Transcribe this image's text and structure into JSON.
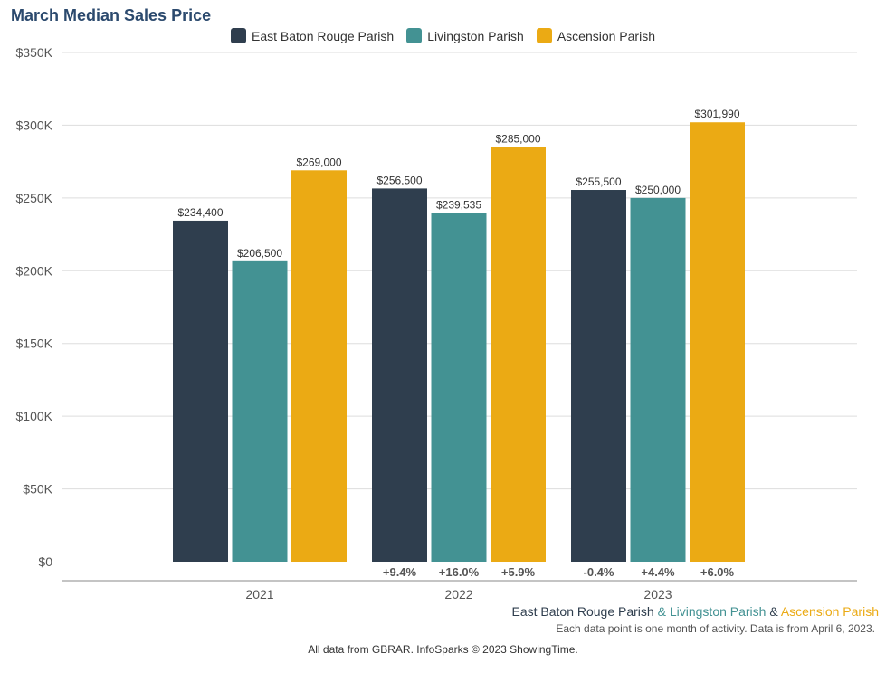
{
  "colors": {
    "east": "#2f3e4e",
    "livingston": "#439293",
    "ascension": "#ebaa14"
  },
  "chart_data": {
    "type": "bar",
    "title": "March Median Sales Price",
    "categories": [
      "2021",
      "2022",
      "2023"
    ],
    "series": [
      {
        "name": "East Baton Rouge Parish",
        "values": [
          234400,
          256500,
          255500
        ],
        "labels": [
          "$234,400",
          "$256,500",
          "$255,500"
        ],
        "changes": [
          "",
          "+9.4%",
          "-0.4%"
        ]
      },
      {
        "name": "Livingston Parish",
        "values": [
          206500,
          239535,
          250000
        ],
        "labels": [
          "$206,500",
          "$239,535",
          "$250,000"
        ],
        "changes": [
          "",
          "+16.0%",
          "+4.4%"
        ]
      },
      {
        "name": "Ascension Parish",
        "values": [
          269000,
          285000,
          301990
        ],
        "labels": [
          "$269,000",
          "$285,000",
          "$301,990"
        ],
        "changes": [
          "",
          "+5.9%",
          "+6.0%"
        ]
      }
    ],
    "ylim": [
      0,
      350000
    ],
    "yticks": [
      0,
      50000,
      100000,
      150000,
      200000,
      250000,
      300000,
      350000
    ],
    "ytick_labels": [
      "$0",
      "$50K",
      "$100K",
      "$150K",
      "$200K",
      "$250K",
      "$300K",
      "$350K"
    ],
    "grid": true,
    "legend_position": "top-center"
  },
  "footer": {
    "series1": "East Baton Rouge Parish",
    "amp1": " & ",
    "series2": "Livingston Parish",
    "amp2": " & ",
    "series3": "Ascension Parish",
    "note": "Each data point is one month of activity. Data is from April 6, 2023.",
    "credit": "All data from GBRAR. InfoSparks © 2023 ShowingTime."
  }
}
